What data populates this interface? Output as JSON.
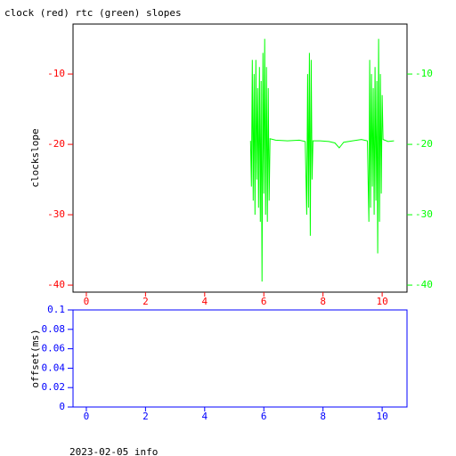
{
  "chart_data": [
    {
      "type": "line",
      "title": "clock (red) rtc (green) slopes",
      "y_label": "clockslope",
      "x": [
        5.55,
        5.58,
        5.61,
        5.64,
        5.67,
        5.7,
        5.73,
        5.76,
        5.79,
        5.82,
        5.85,
        5.88,
        5.91,
        5.94,
        5.97,
        6.0,
        6.03,
        6.06,
        6.09,
        6.12,
        6.15,
        6.18,
        6.21,
        6.4,
        6.8,
        7.2,
        7.4,
        7.45,
        7.48,
        7.51,
        7.54,
        7.57,
        7.6,
        7.63,
        7.66,
        7.9,
        8.2,
        8.4,
        8.55,
        8.7,
        9.0,
        9.3,
        9.5,
        9.55,
        9.58,
        9.61,
        9.64,
        9.67,
        9.7,
        9.73,
        9.76,
        9.79,
        9.82,
        9.85,
        9.88,
        9.91,
        9.94,
        9.97,
        10.0,
        10.03,
        10.2,
        10.4
      ],
      "series": [
        {
          "color": "#00ff00",
          "values": [
            -19.5,
            -26,
            -8,
            -28,
            -10,
            -30,
            -8,
            -25,
            -12,
            -29,
            -9,
            -31,
            -11,
            -39.5,
            -7,
            -27,
            -5,
            -30,
            -9,
            -31,
            -12,
            -28,
            -19.2,
            -19.4,
            -19.5,
            -19.4,
            -19.6,
            -30,
            -10,
            -29,
            -7,
            -33,
            -8,
            -25,
            -19.5,
            -19.5,
            -19.6,
            -19.8,
            -20.5,
            -19.7,
            -19.5,
            -19.3,
            -19.5,
            -31,
            -8,
            -29,
            -10,
            -26,
            -12,
            -30,
            -9,
            -28,
            -11,
            -35.5,
            -5,
            -31,
            -10,
            -27,
            -13,
            -19.3,
            -19.6,
            -19.5
          ]
        }
      ],
      "xlim": [
        -0.45,
        10.84
      ],
      "ylim": [
        -41,
        -2.9
      ],
      "xticks": [
        0,
        2,
        4,
        6,
        8,
        10
      ],
      "yticks": [
        -10,
        -20,
        -30,
        -40
      ],
      "frame_color": "#000000",
      "tick_color": "#ff0000",
      "right_tick_color": "#00ff00"
    },
    {
      "type": "line",
      "y_label": "offset(ms)",
      "x": [],
      "series": [],
      "xlim": [
        -0.45,
        10.84
      ],
      "ylim": [
        0,
        0.1
      ],
      "xticks": [
        0,
        2,
        4,
        6,
        8,
        10
      ],
      "yticks": [
        0,
        0.02,
        0.04,
        0.06,
        0.08,
        0.1
      ],
      "frame_color": "#0000ff",
      "tick_color": "#0000ff"
    }
  ],
  "footer": "2023-02-05 info"
}
